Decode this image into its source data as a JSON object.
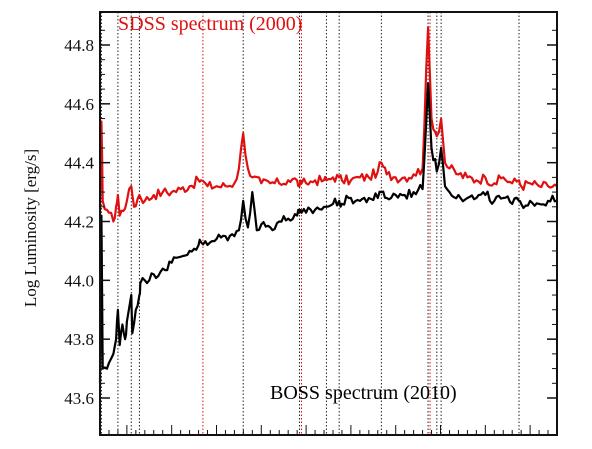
{
  "chart_data": {
    "type": "line",
    "title": "",
    "xlabel": "",
    "ylabel": "Log Luminosity [erg/s]",
    "ylim": [
      43.55,
      44.9
    ],
    "xlim": [
      1200,
      6300
    ],
    "yticks": [
      "43.6",
      "43.8",
      "44.0",
      "44.2",
      "44.4",
      "44.6",
      "44.8"
    ],
    "grid": false,
    "annotations": {
      "top": {
        "text": "SDSS spectrum (2000)",
        "color": "#e01010"
      },
      "bottom": {
        "text": "BOSS spectrum (2010)",
        "color": "#000000"
      }
    },
    "emission_lines": {
      "black_dotted": [
        1216,
        1400,
        1549,
        1640,
        2798,
        3426,
        3727,
        3869,
        4340,
        4861,
        4959,
        5007,
        5876
      ],
      "red_dotted": [
        2326,
        3426,
        4861
      ]
    },
    "series": [
      {
        "color": "#e01010",
        "x": [
          1200,
          1216,
          1230,
          1300,
          1350,
          1380,
          1400,
          1420,
          1500,
          1549,
          1580,
          1640,
          1700,
          1800,
          1900,
          2000,
          2100,
          2200,
          2300,
          2326,
          2400,
          2500,
          2600,
          2700,
          2750,
          2798,
          2850,
          2900,
          3000,
          3100,
          3200,
          3300,
          3400,
          3426,
          3450,
          3500,
          3600,
          3700,
          3727,
          3800,
          3869,
          3900,
          4000,
          4100,
          4200,
          4300,
          4340,
          4400,
          4500,
          4600,
          4700,
          4800,
          4861,
          4900,
          4959,
          5007,
          5050,
          5100,
          5200,
          5300,
          5400,
          5500,
          5600,
          5700,
          5800,
          5876,
          5900,
          6000,
          6100,
          6200,
          6300
        ],
        "y": [
          44.25,
          44.54,
          44.27,
          44.23,
          44.2,
          44.25,
          44.29,
          44.22,
          44.27,
          44.32,
          44.25,
          44.29,
          44.27,
          44.29,
          44.3,
          44.3,
          44.31,
          44.32,
          44.34,
          44.34,
          44.32,
          44.32,
          44.32,
          44.33,
          44.38,
          44.5,
          44.38,
          44.35,
          44.33,
          44.33,
          44.33,
          44.34,
          44.34,
          44.32,
          44.33,
          44.33,
          44.34,
          44.34,
          44.34,
          44.35,
          44.35,
          44.34,
          44.34,
          44.35,
          44.35,
          44.37,
          44.4,
          44.36,
          44.35,
          44.35,
          44.36,
          44.38,
          44.86,
          44.55,
          44.49,
          44.55,
          44.4,
          44.38,
          44.36,
          44.35,
          44.34,
          44.35,
          44.33,
          44.35,
          44.33,
          44.34,
          44.32,
          44.33,
          44.32,
          44.32,
          44.32
        ]
      },
      {
        "color": "#000000",
        "x": [
          1200,
          1216,
          1230,
          1300,
          1350,
          1380,
          1400,
          1420,
          1450,
          1480,
          1500,
          1549,
          1560,
          1600,
          1640,
          1650,
          1700,
          1750,
          1800,
          1900,
          2000,
          2100,
          2200,
          2300,
          2326,
          2400,
          2500,
          2600,
          2700,
          2750,
          2798,
          2850,
          2900,
          2950,
          3000,
          3100,
          3200,
          3300,
          3400,
          3426,
          3450,
          3500,
          3600,
          3700,
          3727,
          3800,
          3869,
          3900,
          4000,
          4100,
          4200,
          4300,
          4340,
          4400,
          4500,
          4600,
          4700,
          4800,
          4861,
          4900,
          4959,
          5007,
          5050,
          5100,
          5200,
          5300,
          5400,
          5500,
          5600,
          5700,
          5800,
          5876,
          5900,
          6000,
          6100,
          6200,
          6300
        ],
        "y": [
          43.65,
          44.22,
          43.7,
          43.72,
          43.75,
          43.8,
          43.9,
          43.78,
          43.85,
          43.8,
          43.86,
          43.95,
          43.82,
          43.9,
          43.95,
          43.99,
          44.0,
          44.0,
          44.02,
          44.04,
          44.06,
          44.08,
          44.1,
          44.12,
          44.13,
          44.12,
          44.14,
          44.15,
          44.15,
          44.17,
          44.27,
          44.18,
          44.3,
          44.17,
          44.19,
          44.18,
          44.2,
          44.21,
          44.22,
          44.23,
          44.23,
          44.23,
          44.24,
          44.25,
          44.25,
          44.26,
          44.27,
          44.26,
          44.28,
          44.27,
          44.28,
          44.28,
          44.3,
          44.28,
          44.29,
          44.29,
          44.3,
          44.31,
          44.67,
          44.45,
          44.37,
          44.45,
          44.32,
          44.3,
          44.29,
          44.28,
          44.28,
          44.29,
          44.27,
          44.28,
          44.26,
          44.27,
          44.26,
          44.27,
          44.26,
          44.27,
          44.27
        ]
      }
    ]
  }
}
